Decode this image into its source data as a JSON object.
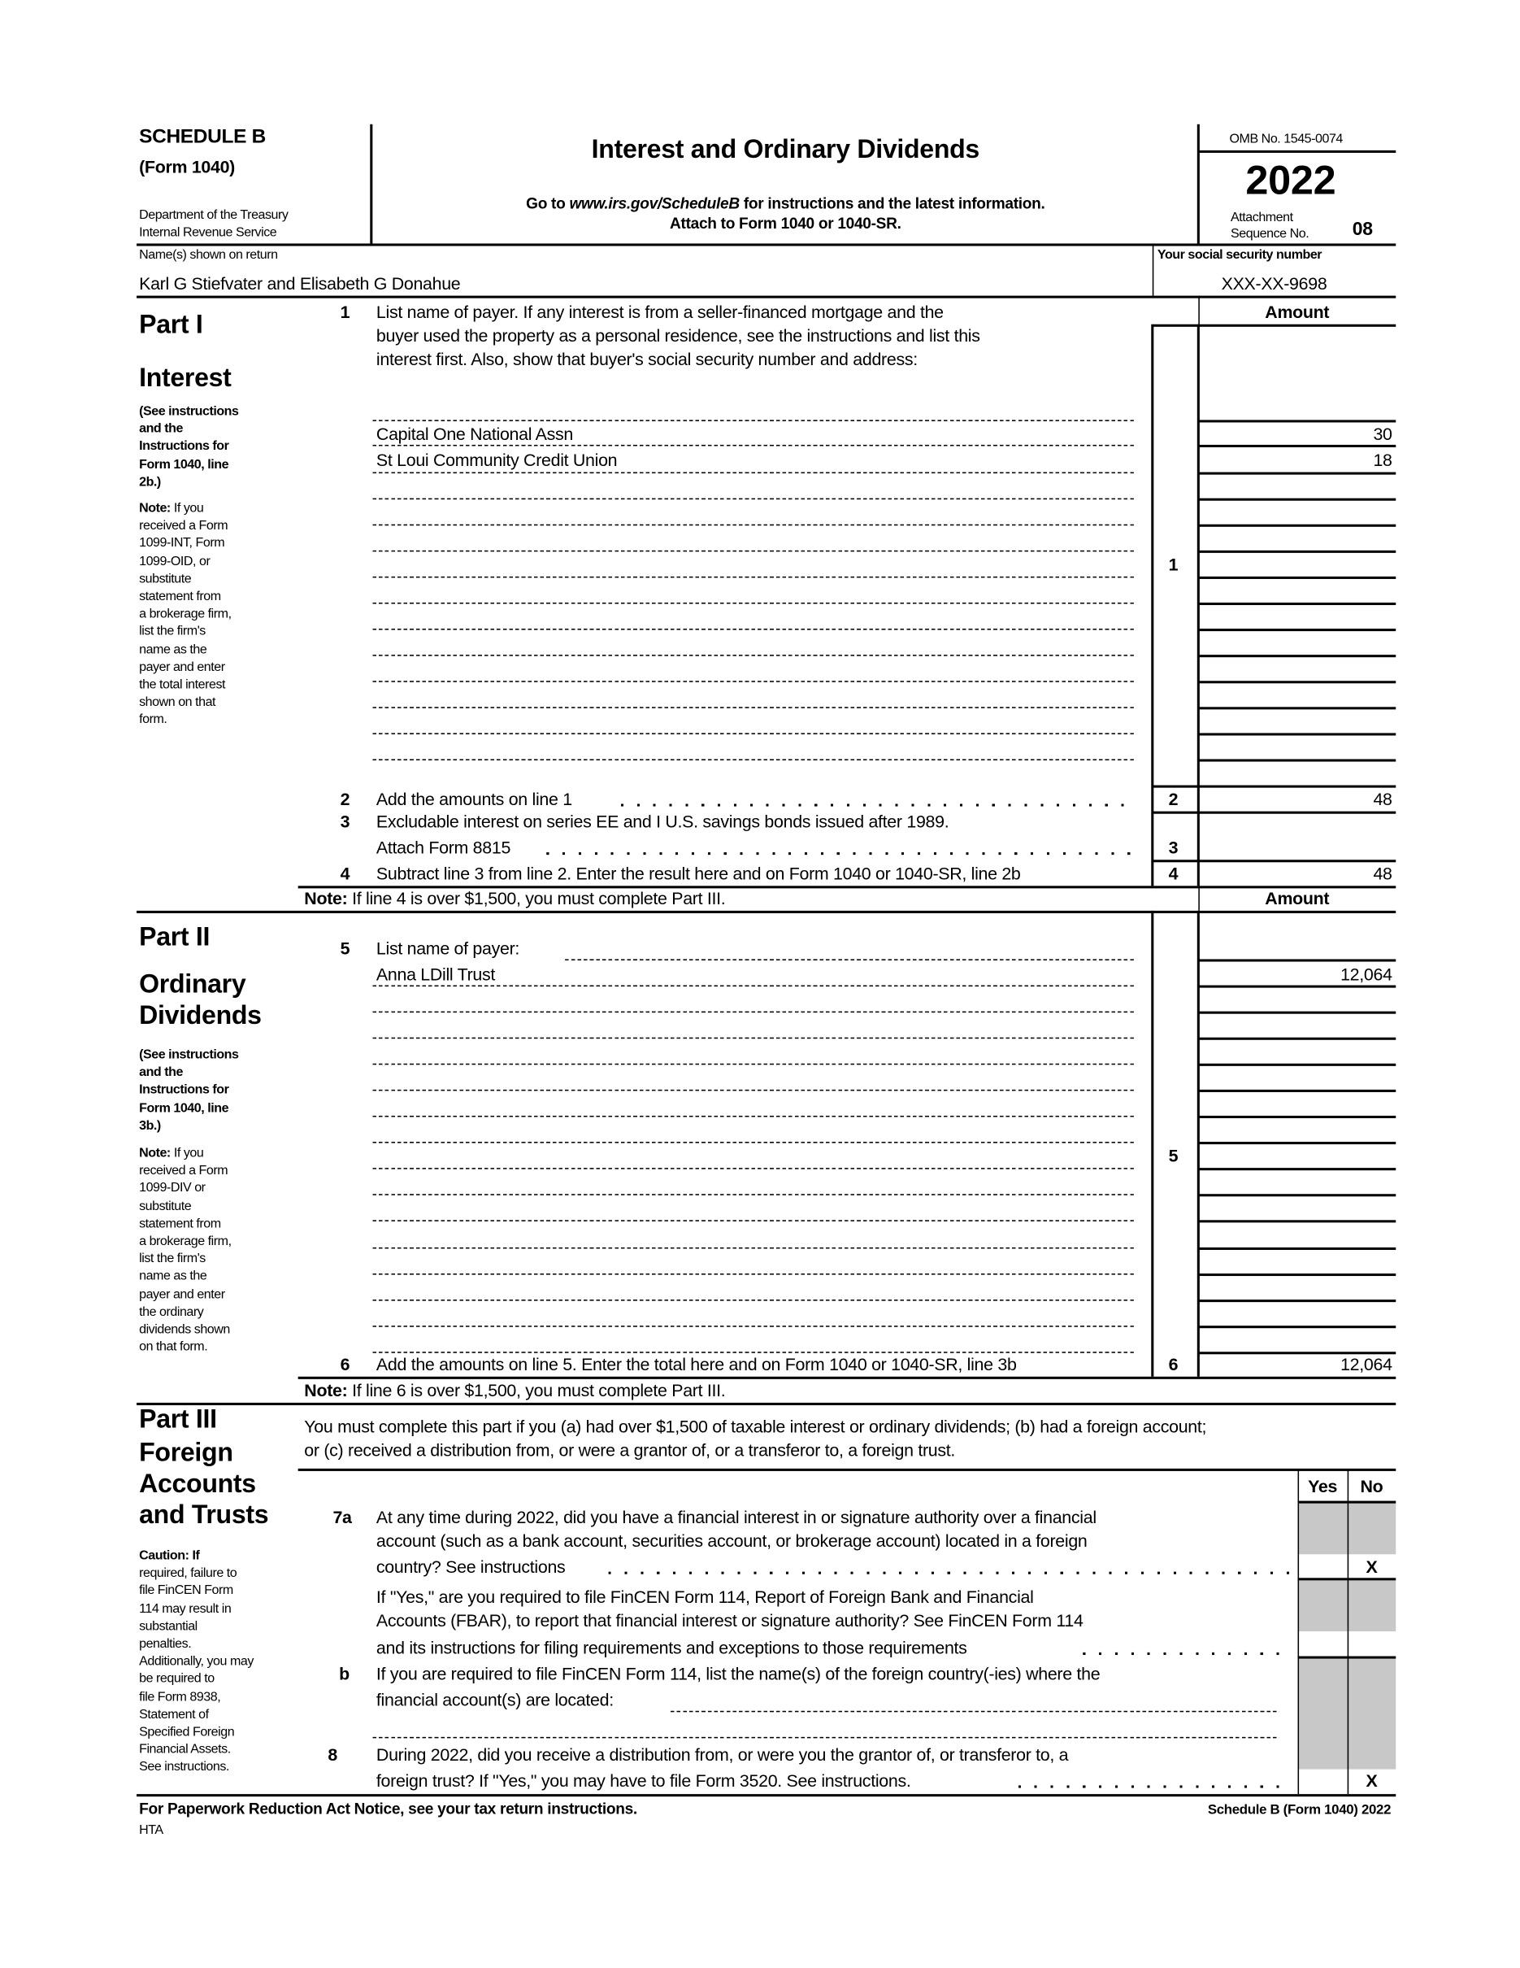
{
  "header": {
    "schedule": "SCHEDULE B",
    "form": "(Form 1040)",
    "dept1": "Department of the Treasury",
    "dept2": "Internal Revenue Service",
    "title": "Interest and Ordinary Dividends",
    "goto_prefix": "Go to ",
    "goto_url": "www.irs.gov/ScheduleB",
    "goto_suffix": " for instructions and the latest information.",
    "attach": "Attach to Form 1040 or 1040-SR.",
    "omb": "OMB No. 1545-0074",
    "year": "2022",
    "attachment": "Attachment",
    "sequence": "Sequence No.",
    "seq_no": "08"
  },
  "taxpayer": {
    "name_label": "Name(s) shown on return",
    "name": "Karl G Stiefvater and Elisabeth G Donahue",
    "ssn_label": "Your social security number",
    "ssn": "XXX-XX-9698"
  },
  "part1": {
    "part": "Part I",
    "title": "Interest",
    "see": [
      "(See instructions",
      "and the",
      "Instructions for",
      "Form 1040, line",
      "2b.)"
    ],
    "note": [
      "Note:",
      "received a Form",
      "1099-INT, Form",
      "1099-OID, or",
      "substitute",
      "statement from",
      "a brokerage firm,",
      "list the firm's",
      "name as the",
      "payer and enter",
      "the total interest",
      "shown on that",
      "form."
    ],
    "note_first_rest": " If you",
    "amount_header": "Amount",
    "line1_num": "1",
    "line1_text": [
      "List name of payer. If any interest is from a seller-financed mortgage and the",
      "buyer used the property as a personal residence, see the instructions and list this",
      "interest first. Also, show that buyer's social security number and address:"
    ],
    "payers": [
      {
        "name": "Capital One National Assn",
        "amount": "30"
      },
      {
        "name": "St Loui Community Credit Union",
        "amount": "18"
      }
    ],
    "line1_box": "1",
    "line2_num": "2",
    "line2_text": "Add the amounts on line 1",
    "line2_box": "2",
    "line2_amount": "48",
    "line3_num": "3",
    "line3_text": [
      "Excludable interest on series EE and I U.S. savings bonds issued after 1989.",
      "Attach Form 8815"
    ],
    "line3_box": "3",
    "line4_num": "4",
    "line4_text": "Subtract line 3 from line 2. Enter the result here and on Form 1040 or 1040-SR, line 2b",
    "line4_box": "4",
    "line4_amount": "48",
    "note_bold": "Note:",
    "note_text": " If line 4 is over $1,500, you must complete Part III."
  },
  "part2": {
    "part": "Part II",
    "title1": "Ordinary",
    "title2": "Dividends",
    "see": [
      "(See instructions",
      "and the",
      "Instructions for",
      "Form 1040, line",
      "3b.)"
    ],
    "note": [
      "Note:",
      "received a Form",
      "1099-DIV or",
      "substitute",
      "statement from",
      "a brokerage firm,",
      "list the firm's",
      "name as the",
      "payer and enter",
      "the ordinary",
      "dividends shown",
      "on that form."
    ],
    "note_first_rest": " If you",
    "amount_header": "Amount",
    "line5_num": "5",
    "line5_text": "List name of payer:",
    "payers": [
      {
        "name": "Anna LDill Trust",
        "amount": "12,064"
      }
    ],
    "line5_box": "5",
    "line6_num": "6",
    "line6_text": "Add the amounts on line 5. Enter the total here and on Form 1040 or 1040-SR, line 3b",
    "line6_box": "6",
    "line6_amount": "12,064",
    "note_bold": "Note:",
    "note_text": " If line 6 is over $1,500, you must complete Part III."
  },
  "part3": {
    "part": "Part III",
    "title1": "Foreign",
    "title2": "Accounts",
    "title3": "and Trusts",
    "caution": [
      "Caution: If",
      "required, failure to",
      "file FinCEN Form",
      "114 may result in",
      "substantial",
      "penalties.",
      "Additionally, you may",
      "be required to",
      "file Form 8938,",
      "Statement of",
      "Specified Foreign",
      "Financial Assets.",
      "See instructions."
    ],
    "intro": [
      "You must complete this part if you (a) had over $1,500 of taxable interest or ordinary dividends; (b) had a foreign account;",
      "or (c) received a distribution from, or were a grantor of, or a transferor to, a foreign trust."
    ],
    "yes": "Yes",
    "no": "No",
    "q7a_num": "7a",
    "q7a_text": [
      "At any time during 2022, did you have a financial interest in or signature authority over a financial",
      "account (such as a bank account, securities account, or brokerage account) located in a foreign",
      "country? See instructions"
    ],
    "q7a_answer_no": "X",
    "q7a2_text": [
      "If \"Yes,\" are you required to file FinCEN Form 114, Report of Foreign Bank and Financial",
      "Accounts (FBAR), to report that financial interest or signature authority? See FinCEN Form 114",
      "and its instructions for filing requirements and exceptions to those requirements"
    ],
    "q7b_num": "b",
    "q7b_text": [
      "If you are required to file FinCEN Form 114, list the name(s) of the foreign country(-ies) where the",
      "financial account(s) are located:"
    ],
    "q8_num": "8",
    "q8_text": [
      "During 2022, did you receive a distribution from, or were you the grantor of, or transferor to, a",
      "foreign trust? If \"Yes,\" you may have to file Form 3520. See instructions."
    ],
    "q8_answer_no": "X"
  },
  "footer": {
    "paperwork": "For Paperwork Reduction Act Notice, see your tax return instructions.",
    "hta": "HTA",
    "form_id": "Schedule B (Form 1040) 2022"
  }
}
